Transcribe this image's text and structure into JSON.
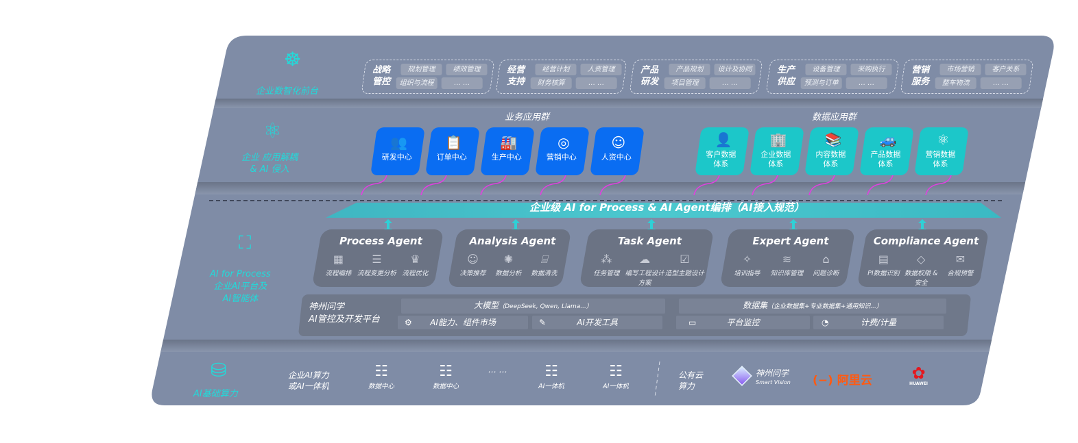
{
  "colors": {
    "panel": "#7f8ca6",
    "accent_teal": "#22dada",
    "business_tile": "#0a6df2",
    "data_tile": "#1cc7c9",
    "arrow": "#e040e0"
  },
  "layer1": {
    "label": "企业数智化前台",
    "icon": "brain-icon",
    "groups": [
      {
        "title": [
          "战略",
          "管控"
        ],
        "chips": [
          "规划管理",
          "绩效管理",
          "组织与流程",
          "… …"
        ]
      },
      {
        "title": [
          "经营",
          "支持"
        ],
        "chips": [
          "经营计划",
          "人资管理",
          "财务核算",
          "… …"
        ]
      },
      {
        "title": [
          "产品",
          "研发"
        ],
        "chips": [
          "产品规划",
          "设计及协同",
          "项目管理",
          "… …"
        ]
      },
      {
        "title": [
          "生产",
          "供应"
        ],
        "chips": [
          "设备管理",
          "采购执行",
          "预测与订单",
          "… …"
        ]
      },
      {
        "title": [
          "营销",
          "服务"
        ],
        "chips": [
          "市场营销",
          "客户关系",
          "整车物流",
          "… …"
        ]
      }
    ]
  },
  "layer2": {
    "label": [
      "企业 应用解耦",
      "& AI 侵入"
    ],
    "icon": "molecule-icon",
    "business_title": "业务应用群",
    "data_title": "数据应用群",
    "business": [
      {
        "label": "研发中心",
        "icon": "users-icon"
      },
      {
        "label": "订单中心",
        "icon": "clipboard-icon"
      },
      {
        "label": "生产中心",
        "icon": "factory-icon"
      },
      {
        "label": "营销中心",
        "icon": "target-icon"
      },
      {
        "label": "人资中心",
        "icon": "person-icon"
      }
    ],
    "data": [
      {
        "label": [
          "客户数据",
          "体系"
        ],
        "icon": "user-icon"
      },
      {
        "label": [
          "企业数据",
          "体系"
        ],
        "icon": "building-icon"
      },
      {
        "label": [
          "内容数据",
          "体系"
        ],
        "icon": "books-icon"
      },
      {
        "label": [
          "产品数据",
          "体系"
        ],
        "icon": "car-icon"
      },
      {
        "label": [
          "营销数据",
          "体系"
        ],
        "icon": "atom-icon"
      }
    ]
  },
  "band": {
    "title": "企业级 AI for Process & AI Agent编排（AI接入规范）"
  },
  "layer3": {
    "label": [
      "AI for Process",
      "企业AI平台及",
      "AI智能体"
    ],
    "icon": "face-scan-icon",
    "agents": [
      {
        "name": "Process Agent",
        "items": [
          {
            "label": "流程编排",
            "icon": "chart-icon"
          },
          {
            "label": "流程变更分析",
            "icon": "list-icon"
          },
          {
            "label": "流程优化",
            "icon": "optimize-icon"
          }
        ]
      },
      {
        "name": "Analysis Agent",
        "items": [
          {
            "label": "决策推荐",
            "icon": "head-icon"
          },
          {
            "label": "数据分析",
            "icon": "gear-atom-icon"
          },
          {
            "label": "数据清洗",
            "icon": "clean-icon"
          }
        ]
      },
      {
        "name": "Task Agent",
        "items": [
          {
            "label": "任务管理",
            "icon": "network-icon"
          },
          {
            "label": "编写工程设计方案",
            "icon": "cloud-icon"
          },
          {
            "label": "造型主题设计",
            "icon": "checklist-icon"
          }
        ]
      },
      {
        "name": "Expert Agent",
        "items": [
          {
            "label": "培训指导",
            "icon": "wand-icon"
          },
          {
            "label": "知识库管理",
            "icon": "layers-icon"
          },
          {
            "label": "问题诊断",
            "icon": "diagnose-icon"
          }
        ]
      },
      {
        "name": "Compliance Agent",
        "items": [
          {
            "label": "PI数据识别",
            "icon": "id-card-icon"
          },
          {
            "label": "数据权限 & 安全",
            "icon": "shield-icon"
          },
          {
            "label": "合规预警",
            "icon": "alert-icon"
          }
        ]
      }
    ],
    "platform": {
      "title": [
        "神州问学",
        "AI管控及开发平台"
      ],
      "model": "大模型",
      "model_note": "（DeepSeek, Qwen, Llama...）",
      "dataset": "数据集",
      "dataset_note": "（企业数据集+专业数据集+通用知识...）",
      "market": "AI能力、组件市场",
      "devtools": "AI开发工具",
      "monitor": "平台监控",
      "billing": "计费/计量"
    }
  },
  "layer4": {
    "label": "AI基础算力",
    "icon": "database-icon",
    "enterprise": [
      "企业AI算力",
      "或AI一体机"
    ],
    "servers": [
      "数据中心",
      "数据中心",
      "AI一体机",
      "AI一体机"
    ],
    "ellipsis": "… …",
    "public": [
      "公有云",
      "算力"
    ],
    "logos": [
      {
        "name": "神州问学",
        "sub": "Smart Vision"
      },
      {
        "name": "阿里云"
      },
      {
        "name": "HUAWEI"
      }
    ]
  }
}
